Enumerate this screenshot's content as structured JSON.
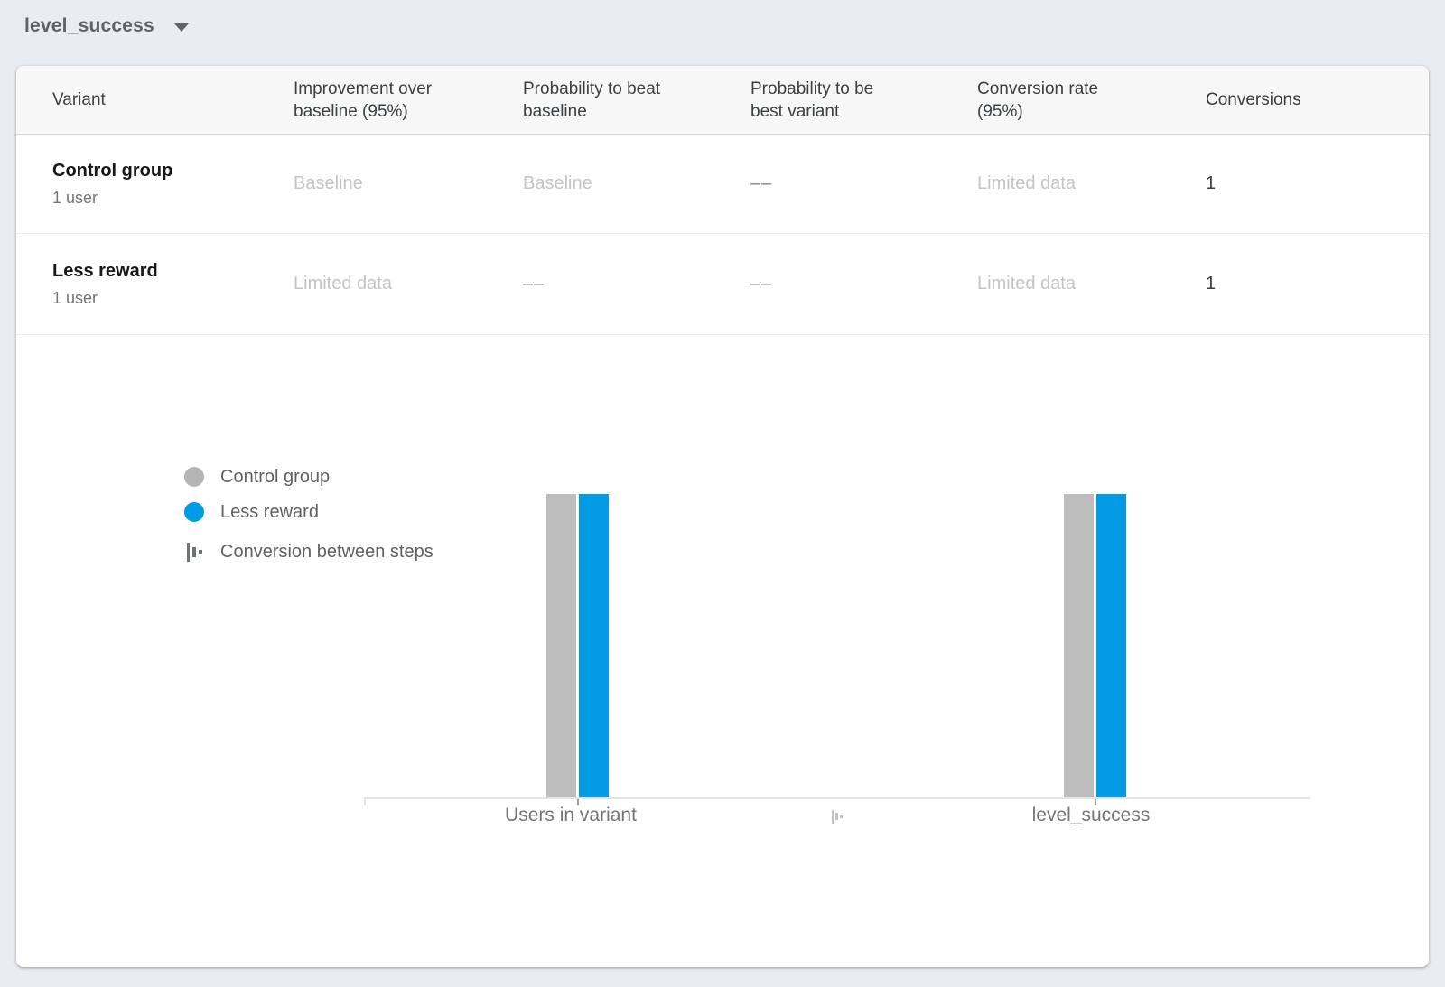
{
  "toolbar": {
    "metric_dropdown": {
      "value": "level_success"
    }
  },
  "table": {
    "headers": {
      "variant": "Variant",
      "improvement": "Improvement over baseline (95%)",
      "prob_beat_baseline": "Probability to beat baseline",
      "prob_best_variant": "Probability to be best variant",
      "conversion_rate": "Conversion rate (95%)",
      "conversions": "Conversions"
    },
    "rows": [
      {
        "variant": "Control group",
        "users": "1 user",
        "improvement": "Baseline",
        "prob_beat_baseline": "Baseline",
        "prob_best_variant": "––",
        "conversion_rate": "Limited data",
        "conversions": "1"
      },
      {
        "variant": "Less reward",
        "users": "1 user",
        "improvement": "Limited data",
        "prob_beat_baseline": "––",
        "prob_best_variant": "––",
        "conversion_rate": "Limited data",
        "conversions": "1"
      }
    ]
  },
  "chart_data": {
    "type": "bar",
    "categories": [
      "Users in variant",
      "level_success"
    ],
    "series": [
      {
        "name": "Control group",
        "color": "#bdbdbd",
        "values": [
          1,
          1
        ]
      },
      {
        "name": "Less reward",
        "color": "#039be5",
        "values": [
          1,
          1
        ]
      }
    ],
    "legend": [
      {
        "label": "Control group",
        "swatch": "circle",
        "color": "#b5b5b5"
      },
      {
        "label": "Less reward",
        "swatch": "circle",
        "color": "#039be5"
      },
      {
        "label": "Conversion between steps",
        "swatch": "steps-icon"
      }
    ],
    "ylim": [
      0,
      1
    ],
    "grid": false,
    "legend_position": "left"
  },
  "colors": {
    "page_background": "#e9edf1",
    "card_background": "#ffffff",
    "table_header_background": "#f7f7f7",
    "accent_blue": "#039be5",
    "bar_gray": "#bdbdbd",
    "muted_value_text": "#c4c4c6",
    "axis_line": "#e2e3e4"
  }
}
